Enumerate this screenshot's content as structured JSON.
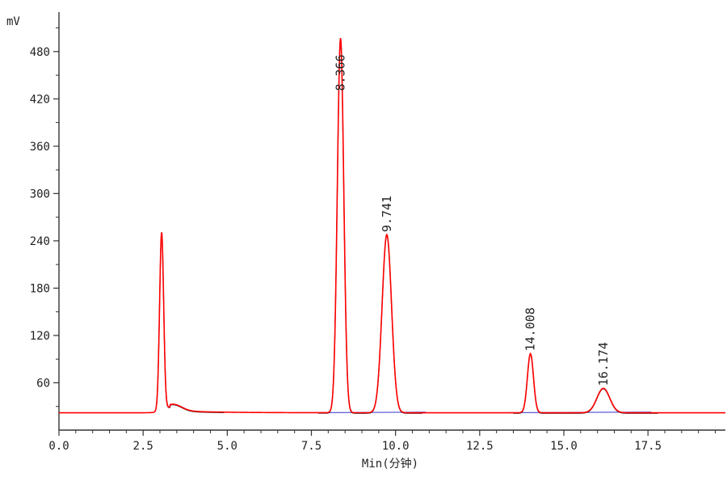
{
  "chart_data": {
    "type": "line",
    "title": "",
    "xlabel": "Min(分钟)",
    "ylabel": "mV",
    "xlim": [
      0,
      19.8
    ],
    "ylim": [
      0,
      530
    ],
    "x_ticks": [
      "0.0",
      "2.5",
      "5.0",
      "7.5",
      "10.0",
      "12.5",
      "15.0",
      "17.5"
    ],
    "x_tick_values": [
      0,
      2.5,
      5.0,
      7.5,
      10.0,
      12.5,
      15.0,
      17.5
    ],
    "y_ticks": [
      "60",
      "120",
      "180",
      "240",
      "300",
      "360",
      "420",
      "480"
    ],
    "y_tick_values": [
      60,
      120,
      180,
      240,
      300,
      360,
      420,
      480
    ],
    "grid": false,
    "baseline_mv": 22,
    "series": [
      {
        "color": "#ff0000",
        "peaks": [
          {
            "rt": 3.05,
            "height_mv": 248,
            "label": ""
          },
          {
            "rt": 8.366,
            "height_mv": 497,
            "label": "8.366"
          },
          {
            "rt": 9.741,
            "height_mv": 248,
            "label": "9.741"
          },
          {
            "rt": 14.008,
            "height_mv": 97,
            "label": "14.008"
          },
          {
            "rt": 16.174,
            "height_mv": 53,
            "label": "16.174"
          }
        ]
      }
    ],
    "integration_baseline_color": "#3333cc",
    "overlay_trace_color": "#000000"
  }
}
